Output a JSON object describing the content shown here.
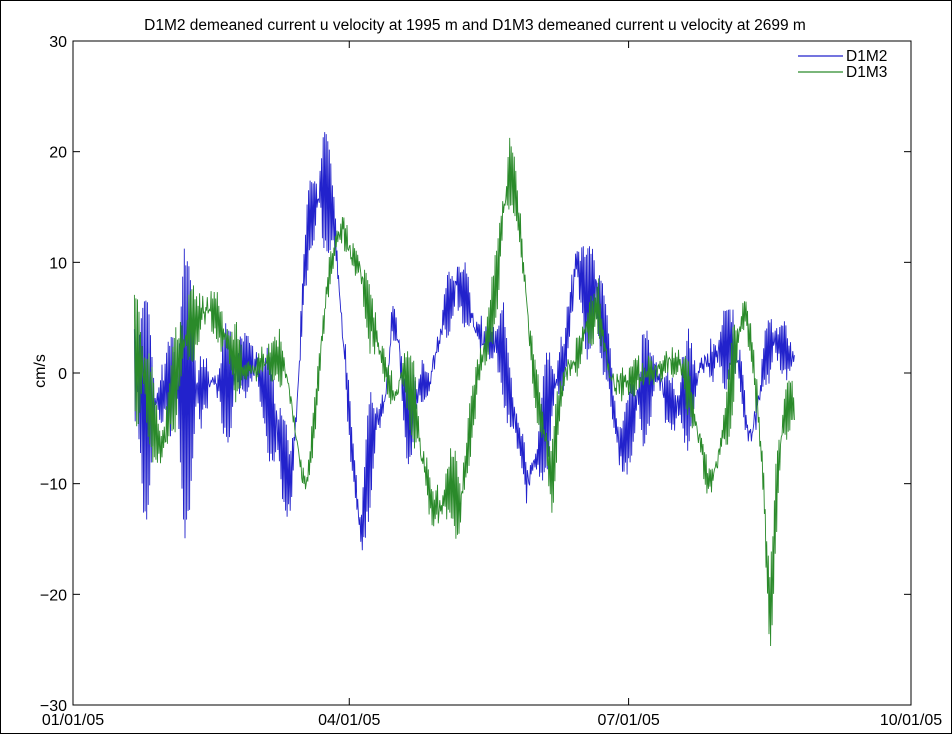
{
  "chart_data": {
    "type": "line",
    "title": "D1M2 demeaned current u velocity at 1995 m and D1M3 demeaned current u velocity at 2699 m",
    "xlabel": "",
    "ylabel": "cm/s",
    "xlim": [
      "2005-01-01",
      "2005-10-01"
    ],
    "ylim": [
      -30,
      30
    ],
    "x_ticks": [
      "2005-01-01",
      "2005-04-01",
      "2005-07-01",
      "2005-10-01"
    ],
    "x_tick_labels": [
      "01/01/05",
      "04/01/05",
      "07/01/05",
      "10/01/05"
    ],
    "y_ticks": [
      -30,
      -20,
      -10,
      0,
      10,
      20,
      30
    ],
    "y_tick_labels": [
      "−30",
      "−20",
      "−10",
      "0",
      "10",
      "20",
      "30"
    ],
    "grid": false,
    "legend": "top-right",
    "series": [
      {
        "name": "D1M2",
        "color": "#2222cc",
        "oscillation": 13,
        "points": [
          [
            "2005-01-21",
            0
          ],
          [
            "2005-01-24",
            -3
          ],
          [
            "2005-01-27",
            -3
          ],
          [
            "2005-01-30",
            -2
          ],
          [
            "2005-02-02",
            -1
          ],
          [
            "2005-02-05",
            -1.5
          ],
          [
            "2005-02-09",
            -1.5
          ],
          [
            "2005-02-13",
            -1
          ],
          [
            "2005-02-17",
            -1
          ],
          [
            "2005-02-21",
            -1
          ],
          [
            "2005-02-24",
            0.5
          ],
          [
            "2005-02-27",
            1
          ],
          [
            "2005-03-02",
            0.5
          ],
          [
            "2005-03-05",
            -2
          ],
          [
            "2005-03-08",
            -5
          ],
          [
            "2005-03-11",
            -8
          ],
          [
            "2005-03-13",
            -10
          ],
          [
            "2005-03-15",
            -3
          ],
          [
            "2005-03-17",
            8
          ],
          [
            "2005-03-19",
            14
          ],
          [
            "2005-03-21",
            15
          ],
          [
            "2005-03-23",
            17
          ],
          [
            "2005-03-25",
            16
          ],
          [
            "2005-03-27",
            14
          ],
          [
            "2005-03-28",
            10
          ],
          [
            "2005-03-30",
            3
          ],
          [
            "2005-04-01",
            -4
          ],
          [
            "2005-04-03",
            -10
          ],
          [
            "2005-04-05",
            -15
          ],
          [
            "2005-04-07",
            -8
          ],
          [
            "2005-04-09",
            -5
          ],
          [
            "2005-04-11",
            -4
          ],
          [
            "2005-04-13",
            -2
          ],
          [
            "2005-04-15",
            5
          ],
          [
            "2005-04-17",
            3
          ],
          [
            "2005-04-19",
            -3
          ],
          [
            "2005-04-21",
            -5
          ],
          [
            "2005-04-24",
            -1
          ],
          [
            "2005-04-27",
            -1
          ],
          [
            "2005-04-30",
            3
          ],
          [
            "2005-05-03",
            6
          ],
          [
            "2005-05-06",
            8
          ],
          [
            "2005-05-09",
            7
          ],
          [
            "2005-05-12",
            4
          ],
          [
            "2005-05-15",
            3
          ],
          [
            "2005-05-18",
            3
          ],
          [
            "2005-05-21",
            2
          ],
          [
            "2005-05-24",
            -3
          ],
          [
            "2005-05-27",
            -7
          ],
          [
            "2005-05-29",
            -10
          ],
          [
            "2005-06-01",
            -8
          ],
          [
            "2005-06-04",
            -4
          ],
          [
            "2005-06-07",
            -1
          ],
          [
            "2005-06-10",
            1
          ],
          [
            "2005-06-12",
            6
          ],
          [
            "2005-06-14",
            10
          ],
          [
            "2005-06-16",
            8
          ],
          [
            "2005-06-18",
            6
          ],
          [
            "2005-06-20",
            8
          ],
          [
            "2005-06-22",
            5
          ],
          [
            "2005-06-24",
            2
          ],
          [
            "2005-06-26",
            -3
          ],
          [
            "2005-06-28",
            -7
          ],
          [
            "2005-07-01",
            -5
          ],
          [
            "2005-07-04",
            -2
          ],
          [
            "2005-07-07",
            -1
          ],
          [
            "2005-07-10",
            0
          ],
          [
            "2005-07-13",
            -2
          ],
          [
            "2005-07-16",
            -3
          ],
          [
            "2005-07-19",
            -2
          ],
          [
            "2005-07-22",
            -1
          ],
          [
            "2005-07-25",
            1
          ],
          [
            "2005-07-28",
            1
          ],
          [
            "2005-07-31",
            2
          ],
          [
            "2005-08-03",
            3
          ],
          [
            "2005-08-06",
            1
          ],
          [
            "2005-08-08",
            -4
          ],
          [
            "2005-08-10",
            -6
          ],
          [
            "2005-08-12",
            -3
          ],
          [
            "2005-08-15",
            2
          ],
          [
            "2005-08-18",
            3
          ],
          [
            "2005-08-21",
            2
          ],
          [
            "2005-08-24",
            1
          ]
        ]
      },
      {
        "name": "D1M3",
        "color": "#2a8a2a",
        "oscillation": 7,
        "points": [
          [
            "2005-01-21",
            2
          ],
          [
            "2005-01-24",
            0
          ],
          [
            "2005-01-27",
            -4
          ],
          [
            "2005-01-30",
            -7
          ],
          [
            "2005-02-02",
            -2
          ],
          [
            "2005-02-05",
            2
          ],
          [
            "2005-02-08",
            4
          ],
          [
            "2005-02-11",
            5
          ],
          [
            "2005-02-14",
            6
          ],
          [
            "2005-02-17",
            5
          ],
          [
            "2005-02-20",
            3
          ],
          [
            "2005-02-23",
            1
          ],
          [
            "2005-02-26",
            0
          ],
          [
            "2005-03-01",
            0.5
          ],
          [
            "2005-03-04",
            1
          ],
          [
            "2005-03-07",
            1
          ],
          [
            "2005-03-10",
            1
          ],
          [
            "2005-03-12",
            -1
          ],
          [
            "2005-03-14",
            -4
          ],
          [
            "2005-03-16",
            -8
          ],
          [
            "2005-03-18",
            -10
          ],
          [
            "2005-03-20",
            -6
          ],
          [
            "2005-03-22",
            0
          ],
          [
            "2005-03-24",
            6
          ],
          [
            "2005-03-26",
            10
          ],
          [
            "2005-03-28",
            12
          ],
          [
            "2005-03-30",
            13
          ],
          [
            "2005-04-01",
            11
          ],
          [
            "2005-04-04",
            10
          ],
          [
            "2005-04-07",
            6
          ],
          [
            "2005-04-10",
            3
          ],
          [
            "2005-04-13",
            0
          ],
          [
            "2005-04-16",
            -2
          ],
          [
            "2005-04-19",
            0
          ],
          [
            "2005-04-22",
            -3
          ],
          [
            "2005-04-25",
            -8
          ],
          [
            "2005-04-28",
            -12
          ],
          [
            "2005-05-01",
            -12
          ],
          [
            "2005-05-04",
            -10
          ],
          [
            "2005-05-07",
            -12
          ],
          [
            "2005-05-10",
            -6
          ],
          [
            "2005-05-13",
            0
          ],
          [
            "2005-05-16",
            3
          ],
          [
            "2005-05-19",
            8
          ],
          [
            "2005-05-21",
            14
          ],
          [
            "2005-05-23",
            18
          ],
          [
            "2005-05-25",
            17
          ],
          [
            "2005-05-27",
            12
          ],
          [
            "2005-05-29",
            6
          ],
          [
            "2005-05-31",
            0
          ],
          [
            "2005-06-02",
            -3
          ],
          [
            "2005-06-04",
            -6
          ],
          [
            "2005-06-06",
            -10
          ],
          [
            "2005-06-08",
            -4
          ],
          [
            "2005-06-10",
            0
          ],
          [
            "2005-06-13",
            1
          ],
          [
            "2005-06-16",
            3
          ],
          [
            "2005-06-19",
            5
          ],
          [
            "2005-06-21",
            6
          ],
          [
            "2005-06-23",
            3
          ],
          [
            "2005-06-25",
            0
          ],
          [
            "2005-06-27",
            -1
          ],
          [
            "2005-06-30",
            -1
          ],
          [
            "2005-07-03",
            0
          ],
          [
            "2005-07-06",
            0
          ],
          [
            "2005-07-09",
            0
          ],
          [
            "2005-07-12",
            0.5
          ],
          [
            "2005-07-15",
            1
          ],
          [
            "2005-07-18",
            1
          ],
          [
            "2005-07-21",
            -2
          ],
          [
            "2005-07-24",
            -6
          ],
          [
            "2005-07-27",
            -10
          ],
          [
            "2005-07-30",
            -8
          ],
          [
            "2005-08-02",
            -4
          ],
          [
            "2005-08-04",
            0
          ],
          [
            "2005-08-06",
            4
          ],
          [
            "2005-08-08",
            6
          ],
          [
            "2005-08-10",
            2
          ],
          [
            "2005-08-12",
            -3
          ],
          [
            "2005-08-14",
            -10
          ],
          [
            "2005-08-15",
            -17
          ],
          [
            "2005-08-16",
            -22
          ],
          [
            "2005-08-17",
            -18
          ],
          [
            "2005-08-18",
            -12
          ],
          [
            "2005-08-19",
            -8
          ],
          [
            "2005-08-20",
            -5
          ],
          [
            "2005-08-22",
            -3
          ],
          [
            "2005-08-24",
            -3
          ]
        ]
      }
    ]
  }
}
